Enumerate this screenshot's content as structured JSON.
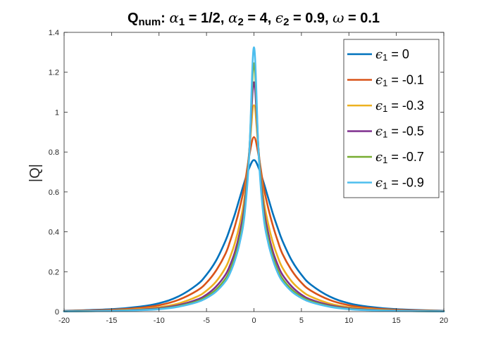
{
  "chart_data": {
    "type": "line",
    "title": {
      "parts": [
        {
          "text": "Q",
          "style": "bold"
        },
        {
          "text": "num",
          "style": "bold-sub"
        },
        {
          "text": ": ",
          "style": "bold"
        },
        {
          "text": "α",
          "style": "greek"
        },
        {
          "text": "1",
          "style": "bold-sub"
        },
        {
          "text": " = 1/2, ",
          "style": "bold"
        },
        {
          "text": "α",
          "style": "greek"
        },
        {
          "text": "2",
          "style": "bold-sub"
        },
        {
          "text": " = 4, ",
          "style": "bold"
        },
        {
          "text": "ϵ",
          "style": "greek"
        },
        {
          "text": "2",
          "style": "bold-sub"
        },
        {
          "text": " = 0.9, ",
          "style": "bold"
        },
        {
          "text": "ω",
          "style": "greek"
        },
        {
          "text": " = 0.1",
          "style": "bold"
        }
      ]
    },
    "xlabel": "",
    "ylabel": "|Q|",
    "xlim": [
      -20,
      20
    ],
    "ylim": [
      0,
      1.4
    ],
    "xticks": [
      -20,
      -15,
      -10,
      -5,
      0,
      5,
      10,
      15,
      20
    ],
    "xtick_labels": [
      "-20",
      "-15",
      "-10",
      "-5",
      "0",
      "5",
      "10",
      "15",
      "20"
    ],
    "yticks": [
      0,
      0.2,
      0.4,
      0.6,
      0.8,
      1.0,
      1.2,
      1.4
    ],
    "ytick_labels": [
      "0",
      "0.2",
      "0.4",
      "0.6",
      "0.8",
      "1",
      "1.2",
      "1.4"
    ],
    "grid": false,
    "box": true,
    "legend_position": "top-right",
    "x": [
      -20,
      -15,
      -12,
      -10,
      -8,
      -6,
      -5,
      -4,
      -3,
      -2.5,
      -2,
      -1.5,
      -1,
      -0.5,
      0,
      0.5,
      1,
      1.5,
      2,
      2.5,
      3,
      4,
      5,
      6,
      8,
      10,
      12,
      15,
      20
    ],
    "series": [
      {
        "name": "ϵ₁ = 0",
        "legend_symbol": "ϵ",
        "legend_sub": "1",
        "legend_value": " = 0",
        "color": "#0072BD",
        "values": [
          0.004,
          0.012,
          0.025,
          0.042,
          0.075,
          0.135,
          0.185,
          0.255,
          0.355,
          0.42,
          0.49,
          0.57,
          0.65,
          0.72,
          0.76,
          0.72,
          0.65,
          0.57,
          0.49,
          0.42,
          0.355,
          0.255,
          0.185,
          0.135,
          0.075,
          0.042,
          0.025,
          0.012,
          0.004
        ]
      },
      {
        "name": "ϵ₁ = -0.1",
        "legend_symbol": "ϵ",
        "legend_sub": "1",
        "legend_value": " = -0.1",
        "color": "#D95319",
        "values": [
          0.003,
          0.009,
          0.019,
          0.032,
          0.058,
          0.105,
          0.145,
          0.205,
          0.29,
          0.355,
          0.43,
          0.52,
          0.63,
          0.78,
          0.875,
          0.78,
          0.63,
          0.52,
          0.43,
          0.355,
          0.29,
          0.205,
          0.145,
          0.105,
          0.058,
          0.032,
          0.019,
          0.009,
          0.003
        ]
      },
      {
        "name": "ϵ₁ = -0.3",
        "legend_symbol": "ϵ",
        "legend_sub": "1",
        "legend_value": " = -0.3",
        "color": "#EDB120",
        "values": [
          0.002,
          0.006,
          0.013,
          0.022,
          0.04,
          0.075,
          0.105,
          0.15,
          0.22,
          0.275,
          0.345,
          0.44,
          0.57,
          0.8,
          1.035,
          0.8,
          0.57,
          0.44,
          0.345,
          0.275,
          0.22,
          0.15,
          0.105,
          0.075,
          0.04,
          0.022,
          0.013,
          0.006,
          0.002
        ]
      },
      {
        "name": "ϵ₁ = -0.5",
        "legend_symbol": "ϵ",
        "legend_sub": "1",
        "legend_value": " = -0.5",
        "color": "#7E2F8E",
        "values": [
          0.0015,
          0.005,
          0.01,
          0.017,
          0.032,
          0.06,
          0.085,
          0.125,
          0.185,
          0.235,
          0.3,
          0.395,
          0.53,
          0.8,
          1.15,
          0.8,
          0.53,
          0.395,
          0.3,
          0.235,
          0.185,
          0.125,
          0.085,
          0.06,
          0.032,
          0.017,
          0.01,
          0.005,
          0.0015
        ]
      },
      {
        "name": "ϵ₁ = -0.7",
        "legend_symbol": "ϵ",
        "legend_sub": "1",
        "legend_value": " = -0.7",
        "color": "#77AC30",
        "values": [
          0.001,
          0.004,
          0.008,
          0.014,
          0.027,
          0.052,
          0.075,
          0.11,
          0.165,
          0.21,
          0.275,
          0.365,
          0.5,
          0.79,
          1.245,
          0.79,
          0.5,
          0.365,
          0.275,
          0.21,
          0.165,
          0.11,
          0.075,
          0.052,
          0.027,
          0.014,
          0.008,
          0.004,
          0.001
        ]
      },
      {
        "name": "ϵ₁ = -0.9",
        "legend_symbol": "ϵ",
        "legend_sub": "1",
        "legend_value": " = -0.9",
        "color": "#4DBEEE",
        "values": [
          0.001,
          0.0035,
          0.007,
          0.012,
          0.024,
          0.047,
          0.068,
          0.1,
          0.152,
          0.195,
          0.258,
          0.345,
          0.48,
          0.78,
          1.325,
          0.78,
          0.48,
          0.345,
          0.258,
          0.195,
          0.152,
          0.1,
          0.068,
          0.047,
          0.024,
          0.012,
          0.007,
          0.0035,
          0.001
        ]
      }
    ]
  }
}
